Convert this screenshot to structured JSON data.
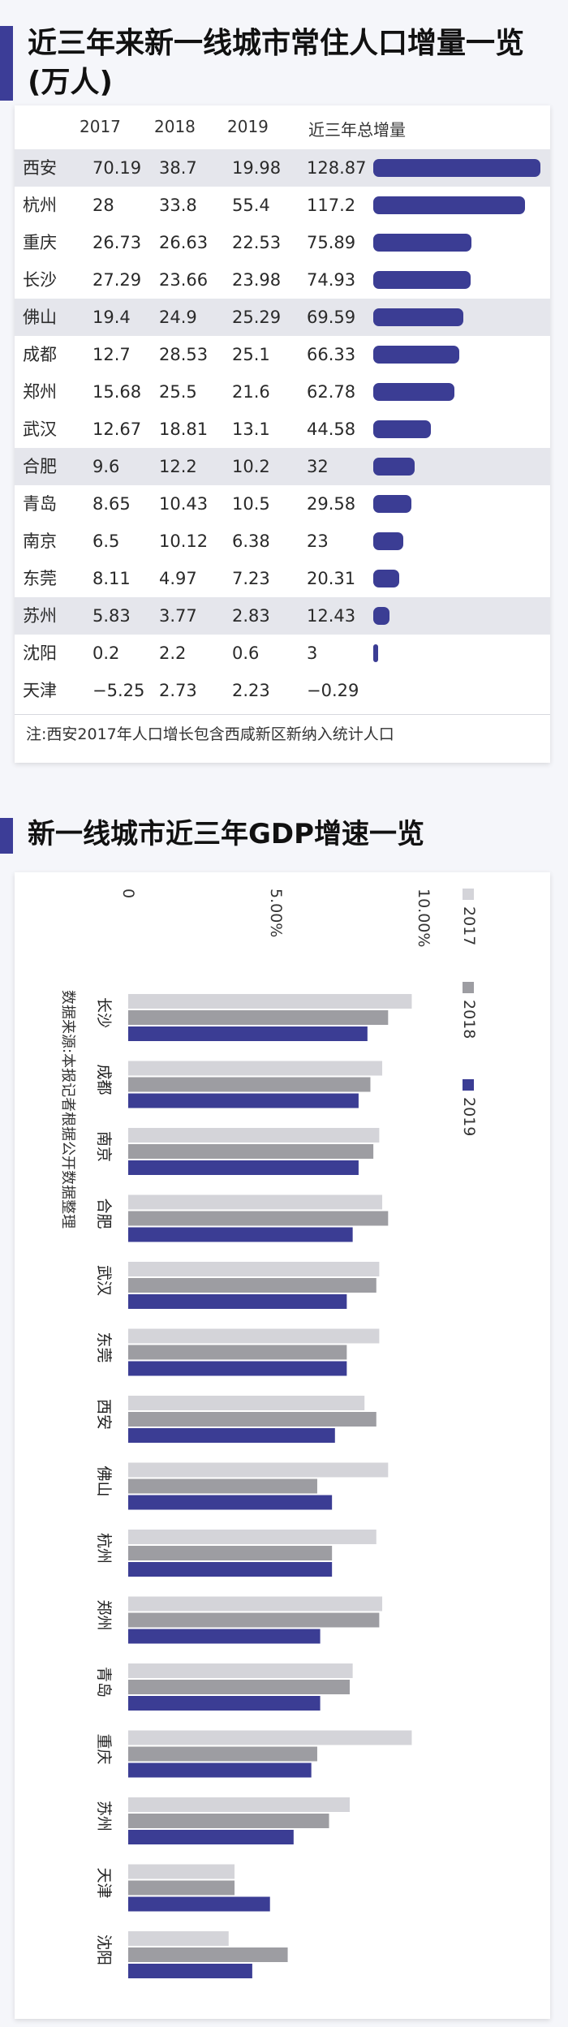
{
  "population": {
    "title": "近三年来新一线城市常住人口增量一览(万人)",
    "headers": [
      "2017",
      "2018",
      "2019",
      "近三年总增量"
    ],
    "rows": [
      {
        "city": "西安",
        "v2017": "70.19",
        "v2018": "38.7",
        "v2019": "19.98",
        "total": "128.87"
      },
      {
        "city": "杭州",
        "v2017": "28",
        "v2018": "33.8",
        "v2019": "55.4",
        "total": "117.2"
      },
      {
        "city": "重庆",
        "v2017": "26.73",
        "v2018": "26.63",
        "v2019": "22.53",
        "total": "75.89"
      },
      {
        "city": "长沙",
        "v2017": "27.29",
        "v2018": "23.66",
        "v2019": "23.98",
        "total": "74.93"
      },
      {
        "city": "佛山",
        "v2017": "19.4",
        "v2018": "24.9",
        "v2019": "25.29",
        "total": "69.59"
      },
      {
        "city": "成都",
        "v2017": "12.7",
        "v2018": "28.53",
        "v2019": "25.1",
        "total": "66.33"
      },
      {
        "city": "郑州",
        "v2017": "15.68",
        "v2018": "25.5",
        "v2019": "21.6",
        "total": "62.78"
      },
      {
        "city": "武汉",
        "v2017": "12.67",
        "v2018": "18.81",
        "v2019": "13.1",
        "total": "44.58"
      },
      {
        "city": "合肥",
        "v2017": "9.6",
        "v2018": "12.2",
        "v2019": "10.2",
        "total": "32"
      },
      {
        "city": "青岛",
        "v2017": "8.65",
        "v2018": "10.43",
        "v2019": "10.5",
        "total": "29.58"
      },
      {
        "city": "南京",
        "v2017": "6.5",
        "v2018": "10.12",
        "v2019": "6.38",
        "total": "23"
      },
      {
        "city": "东莞",
        "v2017": "8.11",
        "v2018": "4.97",
        "v2019": "7.23",
        "total": "20.31"
      },
      {
        "city": "苏州",
        "v2017": "5.83",
        "v2018": "3.77",
        "v2019": "2.83",
        "total": "12.43"
      },
      {
        "city": "沈阳",
        "v2017": "0.2",
        "v2018": "2.2",
        "v2019": "0.6",
        "total": "3"
      },
      {
        "city": "天津",
        "v2017": "−5.25",
        "v2018": "2.73",
        "v2019": "2.23",
        "total": "−0.29"
      }
    ],
    "note": "注:西安2017年人口增长包含西咸新区新纳入统计人口",
    "bar_color": "#3b3d94"
  },
  "chart_data": {
    "type": "bar",
    "title": "新一线城市近三年GDP增速一览",
    "categories": [
      "长沙",
      "成都",
      "南京",
      "合肥",
      "武汉",
      "东莞",
      "西安",
      "佛山",
      "杭州",
      "郑州",
      "青岛",
      "重庆",
      "苏州",
      "天津",
      "沈阳"
    ],
    "series": [
      {
        "name": "2017",
        "color": "#d4d4d9",
        "values": [
          9.6,
          8.6,
          8.5,
          8.6,
          8.5,
          8.5,
          8.0,
          8.8,
          8.4,
          8.6,
          7.6,
          9.6,
          7.5,
          3.6,
          3.4
        ]
      },
      {
        "name": "2018",
        "color": "#9d9da2",
        "values": [
          8.8,
          8.2,
          8.3,
          8.8,
          8.4,
          7.4,
          8.4,
          6.4,
          6.9,
          8.5,
          7.5,
          6.4,
          6.8,
          3.6,
          5.4
        ]
      },
      {
        "name": "2019",
        "color": "#3b3d94",
        "values": [
          8.1,
          7.8,
          7.8,
          7.6,
          7.4,
          7.4,
          7.0,
          6.9,
          6.9,
          6.5,
          6.5,
          6.2,
          5.6,
          4.8,
          4.2
        ]
      }
    ],
    "ylim": [
      0,
      10
    ],
    "ticks": [
      "0",
      "5.00%",
      "10.00%"
    ],
    "source_note": "数据来源:本报记者根据公开数据整理"
  }
}
